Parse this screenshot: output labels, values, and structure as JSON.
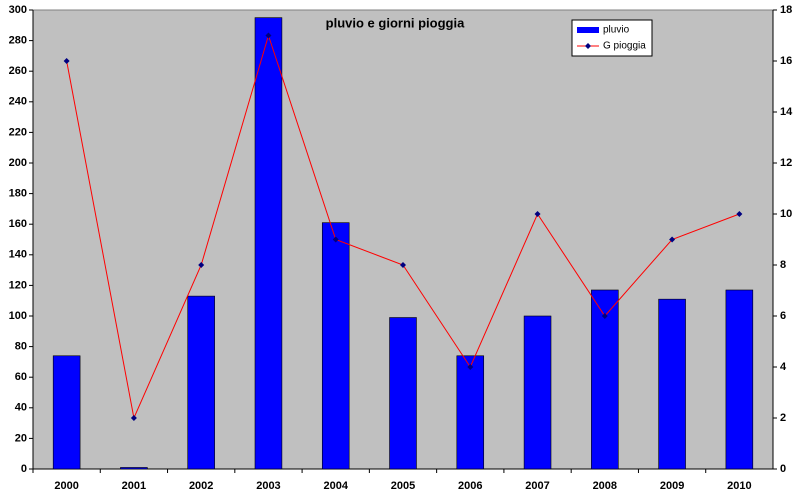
{
  "chart_data": {
    "type": "bar",
    "title": "pluvio e giorni pioggia",
    "categories": [
      "2000",
      "2001",
      "2002",
      "2003",
      "2004",
      "2005",
      "2006",
      "2007",
      "2008",
      "2009",
      "2010"
    ],
    "series": [
      {
        "name": "pluvio",
        "type": "bar",
        "color": "#0000ff",
        "values": [
          74,
          1,
          113,
          295,
          161,
          99,
          74,
          100,
          117,
          111,
          117
        ]
      },
      {
        "name": "G pioggia",
        "type": "line",
        "axis": "y2",
        "color": "#ff0000",
        "marker_color": "#000080",
        "values": [
          16,
          2,
          8,
          17,
          9,
          8,
          4,
          10,
          6,
          9,
          10
        ]
      }
    ],
    "ylim": [
      0,
      300
    ],
    "yticks": [
      0,
      20,
      40,
      60,
      80,
      100,
      120,
      140,
      160,
      180,
      200,
      220,
      240,
      260,
      280,
      300
    ],
    "y2lim": [
      0,
      18
    ],
    "y2ticks": [
      0,
      2,
      4,
      6,
      8,
      10,
      12,
      14,
      16,
      18
    ],
    "grid": false,
    "legend": "top-right",
    "plot_background": "#c0c0c0"
  }
}
